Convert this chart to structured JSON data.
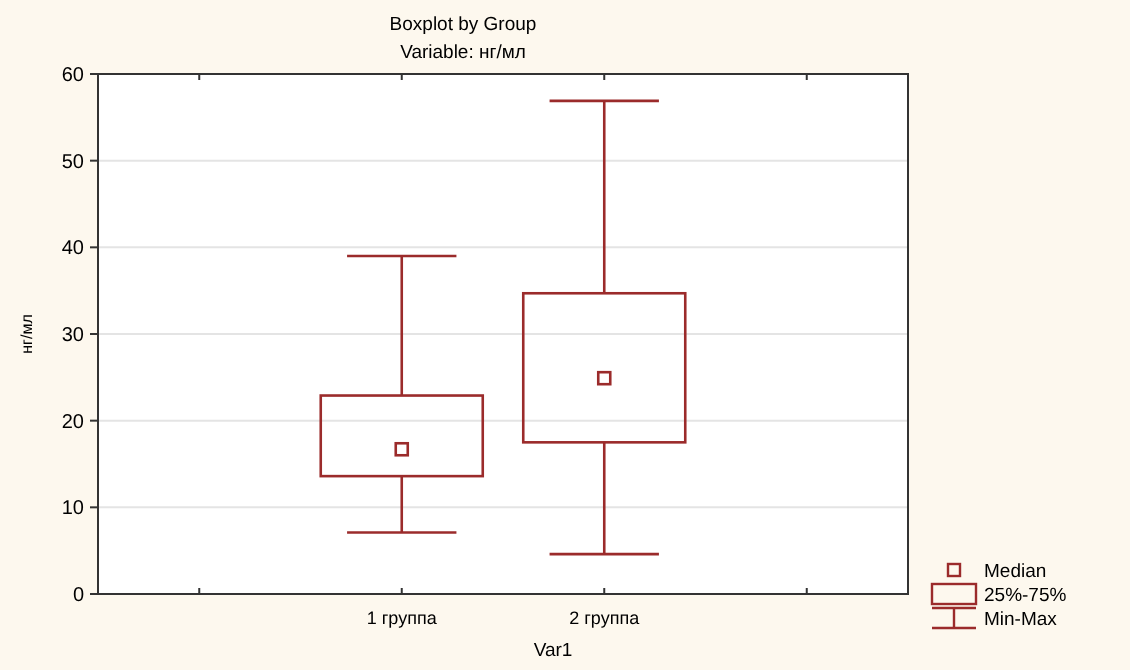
{
  "chart_data": {
    "type": "box",
    "title": "Boxplot by Group",
    "subtitle": "Variable: нг/мл",
    "xlabel": "Var1",
    "ylabel": "нг/мл",
    "categories": [
      null,
      "1 группа",
      "2 группа",
      null
    ],
    "boxes": [
      null,
      {
        "low": 7.1,
        "q1": 13.6,
        "median": 16.7,
        "q3": 22.9,
        "high": 39
      },
      {
        "low": 4.6,
        "q1": 17.5,
        "median": 24.9,
        "q3": 34.7,
        "high": 56.9
      },
      null
    ],
    "color": "#9b2b2b",
    "ylim": [
      0,
      60
    ],
    "yticks": [
      0,
      10,
      20,
      30,
      40,
      50,
      60
    ],
    "grid": "y",
    "marker": "square",
    "annotations": [
      "Median",
      "25%-75%",
      "Min-Max"
    ]
  }
}
